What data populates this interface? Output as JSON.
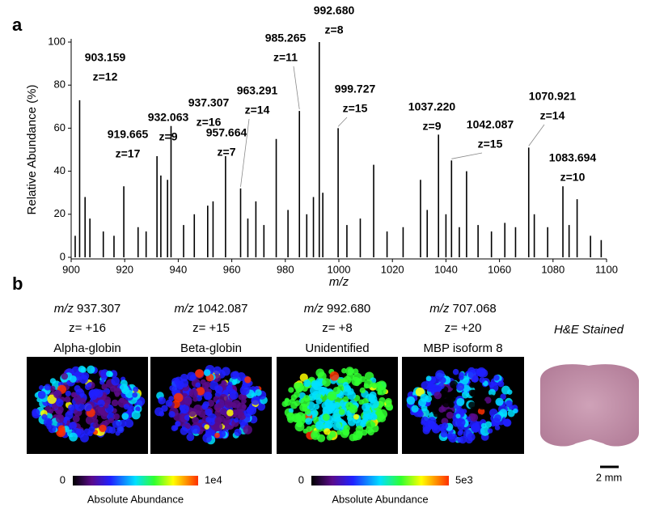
{
  "chart_data": {
    "type": "stem",
    "panel_label": "a",
    "xlabel": "m/z",
    "ylabel": "Relative Abundance (%)",
    "color": "#000000",
    "xlim": [
      900,
      1100
    ],
    "ylim": [
      0,
      100
    ],
    "xticks": [
      900,
      920,
      940,
      960,
      980,
      1000,
      1020,
      1040,
      1060,
      1080,
      1100
    ],
    "yticks": [
      0,
      20,
      40,
      60,
      80,
      100
    ],
    "x": [
      901.5,
      903.159,
      905.2,
      907,
      912,
      916,
      919.665,
      925,
      928,
      932.063,
      933.5,
      936,
      937.307,
      942,
      946,
      951,
      953,
      957.664,
      963.291,
      966,
      969,
      972,
      976.6,
      981,
      985.265,
      988,
      990.5,
      992.68,
      994,
      999.727,
      1003,
      1008,
      1013,
      1018,
      1024,
      1030.5,
      1033,
      1037.22,
      1040,
      1042.087,
      1045,
      1047.7,
      1052,
      1057,
      1062,
      1066,
      1070.921,
      1073,
      1078,
      1083.694,
      1086,
      1089,
      1094,
      1098
    ],
    "values": [
      10,
      73,
      28,
      18,
      12,
      10,
      33,
      14,
      12,
      47,
      38,
      36,
      61,
      15,
      20,
      24,
      26,
      47,
      32,
      18,
      26,
      15,
      55,
      22,
      68,
      20,
      28,
      100,
      30,
      60,
      15,
      18,
      43,
      12,
      14,
      36,
      22,
      57,
      20,
      45,
      14,
      40,
      15,
      12,
      16,
      14,
      51,
      20,
      14,
      33,
      15,
      27,
      10,
      8
    ],
    "annotations": [
      {
        "mz": "903.159",
        "z": "z=12",
        "color": "#1daa4b"
      },
      {
        "mz": "932.063",
        "z": "z=9",
        "color": "#c8651b"
      },
      {
        "mz": "937.307",
        "z": "z=16",
        "color": "#7030a0"
      },
      {
        "mz": "919.665",
        "z": "z=17",
        "color": "#2e86c8"
      },
      {
        "mz": "957.664",
        "z": "z=7",
        "color": "#c8a020"
      },
      {
        "mz": "963.291",
        "z": "z=14",
        "color": "#1f2d6b"
      },
      {
        "mz": "985.265",
        "z": "z=11",
        "color": "#1daa4b"
      },
      {
        "mz": "992.680",
        "z": "z=8",
        "color": "#ee1c24"
      },
      {
        "mz": "999.727",
        "z": "z=15",
        "color": "#7030a0"
      },
      {
        "mz": "1037.220",
        "z": "z=9",
        "color": "#000000"
      },
      {
        "mz": "1042.087",
        "z": "z=15",
        "color": "#2e86c8"
      },
      {
        "mz": "1070.921",
        "z": "z=14",
        "color": "#7030a0"
      },
      {
        "mz": "1083.694",
        "z": "z=10",
        "color": "#1daa4b"
      }
    ]
  },
  "panel_b": {
    "panel_label": "b",
    "images": [
      {
        "prefix": "m/z",
        "mz": "937.307",
        "charge": "z= +16",
        "name": "Alpha-globin"
      },
      {
        "prefix": "m/z",
        "mz": "1042.087",
        "charge": "z= +15",
        "name": "Beta-globin"
      },
      {
        "prefix": "m/z",
        "mz": "992.680",
        "charge": "z= +8",
        "name": "Unidentified"
      },
      {
        "prefix": "m/z",
        "mz": "707.068",
        "charge": "z= +20",
        "name": "MBP isoform 8"
      }
    ],
    "stain_label": "H&E Stained",
    "scale_bar": "2 mm",
    "colorbars": [
      {
        "label": "Absolute Abundance",
        "ticks": [
          0,
          {
            "value": 10000,
            "label": "1e4"
          }
        ]
      },
      {
        "label": "Absolute Abundance",
        "ticks": [
          0,
          {
            "value": 5000,
            "label": "5e3"
          }
        ]
      }
    ]
  }
}
